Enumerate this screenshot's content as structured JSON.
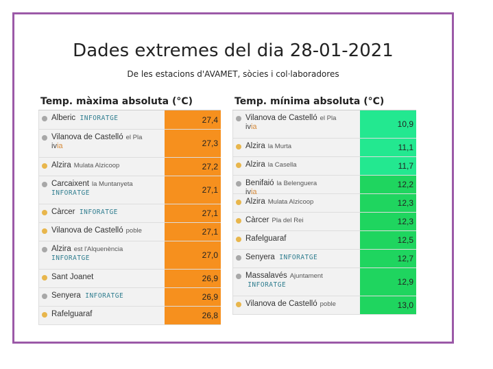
{
  "title": "Dades extremes del dia 28-01-2021",
  "subtitle": "De les estacions d'AVAMET, sòcies i col·laboradores",
  "max_table": {
    "header": "Temp. màxima absoluta (°C)",
    "rows": [
      {
        "name": "Alberic",
        "sub": "",
        "tag": "INFORATGE",
        "ivia": "",
        "value": "27,4"
      },
      {
        "name": "Vilanova de Castelló",
        "sub": "el Pla",
        "tag": "",
        "ivia": "ivia",
        "value": "27,3"
      },
      {
        "name": "Alzira",
        "sub": "Mulata Alzicoop",
        "tag": "",
        "ivia": "",
        "value": "27,2"
      },
      {
        "name": "Carcaixent",
        "sub": "la Muntanyeta",
        "tag": "INFORATGE",
        "ivia": "",
        "value": "27,1"
      },
      {
        "name": "Càrcer",
        "sub": "",
        "tag": "INFORATGE",
        "ivia": "",
        "value": "27,1"
      },
      {
        "name": "Vilanova de Castelló",
        "sub": "poble",
        "tag": "",
        "ivia": "",
        "value": "27,1"
      },
      {
        "name": "Alzira",
        "sub": "est l'Alquenència",
        "tag": "INFORATGE",
        "ivia": "",
        "value": "27,0"
      },
      {
        "name": "Sant Joanet",
        "sub": "",
        "tag": "",
        "ivia": "",
        "value": "26,9"
      },
      {
        "name": "Senyera",
        "sub": "",
        "tag": "INFORATGE",
        "ivia": "",
        "value": "26,9"
      },
      {
        "name": "Rafelguaraf",
        "sub": "",
        "tag": "",
        "ivia": "",
        "value": "26,8"
      }
    ]
  },
  "min_table": {
    "header": "Temp. mínima absoluta (°C)",
    "rows": [
      {
        "name": "Vilanova de Castelló",
        "sub": "el Pla",
        "tag": "",
        "ivia": "ivia",
        "value": "10,9"
      },
      {
        "name": "Alzira",
        "sub": "la Murta",
        "tag": "",
        "ivia": "",
        "value": "11,1"
      },
      {
        "name": "Alzira",
        "sub": "la Casella",
        "tag": "",
        "ivia": "",
        "value": "11,7"
      },
      {
        "name": "Benifaió",
        "sub": "la Belenguera",
        "tag": "",
        "ivia": "ivia",
        "value": "12,2"
      },
      {
        "name": "Alzira",
        "sub": "Mulata Alzicoop",
        "tag": "",
        "ivia": "",
        "value": "12,3"
      },
      {
        "name": "Càrcer",
        "sub": "Pla del Rei",
        "tag": "",
        "ivia": "",
        "value": "12,3"
      },
      {
        "name": "Rafelguaraf",
        "sub": "",
        "tag": "",
        "ivia": "",
        "value": "12,5"
      },
      {
        "name": "Senyera",
        "sub": "",
        "tag": "INFORATGE",
        "ivia": "",
        "value": "12,7"
      },
      {
        "name": "Massalavés",
        "sub": "Ajuntament",
        "tag": "INFORATGE",
        "ivia": "",
        "value": "12,9"
      },
      {
        "name": "Vilanova de Castelló",
        "sub": "poble",
        "tag": "",
        "ivia": "",
        "value": "13,0"
      }
    ]
  },
  "colors": {
    "frame": "#9b59a7",
    "max_value": "#f6901e",
    "min_value_light": "#23e890",
    "min_value_dark": "#1fd55f",
    "dot_grey": "#a8a8a8",
    "dot_yellow": "#e8b64c"
  }
}
